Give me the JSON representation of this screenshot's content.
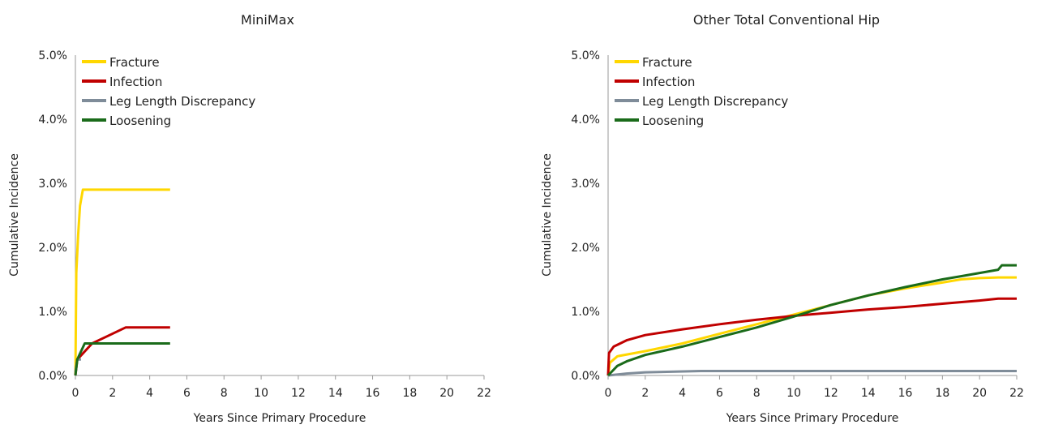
{
  "chart_data": [
    {
      "type": "line",
      "title": "MiniMax",
      "xlabel": "Years Since Primary Procedure",
      "ylabel": "Cumulative Incidence",
      "xlim": [
        0,
        22
      ],
      "ylim": [
        0,
        5
      ],
      "xticks": [
        "0",
        "2",
        "4",
        "6",
        "8",
        "10",
        "12",
        "14",
        "16",
        "18",
        "20",
        "22"
      ],
      "yticks": [
        "0.0%",
        "1.0%",
        "2.0%",
        "3.0%",
        "4.0%",
        "5.0%"
      ],
      "legend_position": "top-left",
      "series": [
        {
          "name": "Fracture",
          "color": "#FFD700",
          "points": [
            [
              0,
              0
            ],
            [
              0.05,
              1.6
            ],
            [
              0.15,
              2.2
            ],
            [
              0.25,
              2.65
            ],
            [
              0.4,
              2.9
            ],
            [
              5.1,
              2.9
            ]
          ]
        },
        {
          "name": "Infection",
          "color": "#C00000",
          "points": [
            [
              0,
              0
            ],
            [
              0.1,
              0.25
            ],
            [
              0.9,
              0.5
            ],
            [
              2.7,
              0.75
            ],
            [
              5.1,
              0.75
            ]
          ]
        },
        {
          "name": "Leg Length Discrepancy",
          "color": "#7F8C99",
          "points": [
            [
              0,
              0.05
            ],
            [
              0.1,
              0.25
            ],
            [
              0.3,
              0.25
            ]
          ]
        },
        {
          "name": "Loosening",
          "color": "#1A6B1A",
          "points": [
            [
              0,
              0
            ],
            [
              0.1,
              0.25
            ],
            [
              0.5,
              0.5
            ],
            [
              5.1,
              0.5
            ]
          ]
        }
      ]
    },
    {
      "type": "line",
      "title": "Other Total Conventional Hip",
      "xlabel": "Years Since Primary Procedure",
      "ylabel": "Cumulative Incidence",
      "xlim": [
        0,
        22
      ],
      "ylim": [
        0,
        5
      ],
      "xticks": [
        "0",
        "2",
        "4",
        "6",
        "8",
        "10",
        "12",
        "14",
        "16",
        "18",
        "20",
        "22"
      ],
      "yticks": [
        "0.0%",
        "1.0%",
        "2.0%",
        "3.0%",
        "4.0%",
        "5.0%"
      ],
      "legend_position": "top-left",
      "series": [
        {
          "name": "Fracture",
          "color": "#FFD700",
          "points": [
            [
              0,
              0
            ],
            [
              0.1,
              0.2
            ],
            [
              0.5,
              0.3
            ],
            [
              2,
              0.38
            ],
            [
              4,
              0.5
            ],
            [
              6,
              0.65
            ],
            [
              8,
              0.8
            ],
            [
              10,
              0.95
            ],
            [
              12,
              1.1
            ],
            [
              14,
              1.25
            ],
            [
              16,
              1.36
            ],
            [
              18,
              1.45
            ],
            [
              19,
              1.5
            ],
            [
              20,
              1.52
            ],
            [
              21,
              1.53
            ],
            [
              22,
              1.53
            ]
          ]
        },
        {
          "name": "Infection",
          "color": "#C00000",
          "points": [
            [
              0,
              0
            ],
            [
              0.05,
              0.35
            ],
            [
              0.3,
              0.45
            ],
            [
              1,
              0.55
            ],
            [
              2,
              0.63
            ],
            [
              4,
              0.72
            ],
            [
              6,
              0.8
            ],
            [
              8,
              0.87
            ],
            [
              10,
              0.93
            ],
            [
              12,
              0.98
            ],
            [
              14,
              1.03
            ],
            [
              16,
              1.07
            ],
            [
              18,
              1.12
            ],
            [
              20,
              1.17
            ],
            [
              21,
              1.2
            ],
            [
              22,
              1.2
            ]
          ]
        },
        {
          "name": "Leg Length Discrepancy",
          "color": "#7F8C99",
          "points": [
            [
              0,
              0
            ],
            [
              1,
              0.03
            ],
            [
              2,
              0.05
            ],
            [
              5,
              0.07
            ],
            [
              22,
              0.07
            ]
          ]
        },
        {
          "name": "Loosening",
          "color": "#1A6B1A",
          "points": [
            [
              0,
              0
            ],
            [
              0.5,
              0.15
            ],
            [
              1,
              0.22
            ],
            [
              2,
              0.32
            ],
            [
              4,
              0.45
            ],
            [
              6,
              0.6
            ],
            [
              8,
              0.75
            ],
            [
              10,
              0.92
            ],
            [
              12,
              1.1
            ],
            [
              14,
              1.25
            ],
            [
              16,
              1.38
            ],
            [
              18,
              1.5
            ],
            [
              19,
              1.55
            ],
            [
              20,
              1.6
            ],
            [
              21,
              1.65
            ],
            [
              21.2,
              1.72
            ],
            [
              22,
              1.72
            ]
          ]
        }
      ]
    }
  ]
}
